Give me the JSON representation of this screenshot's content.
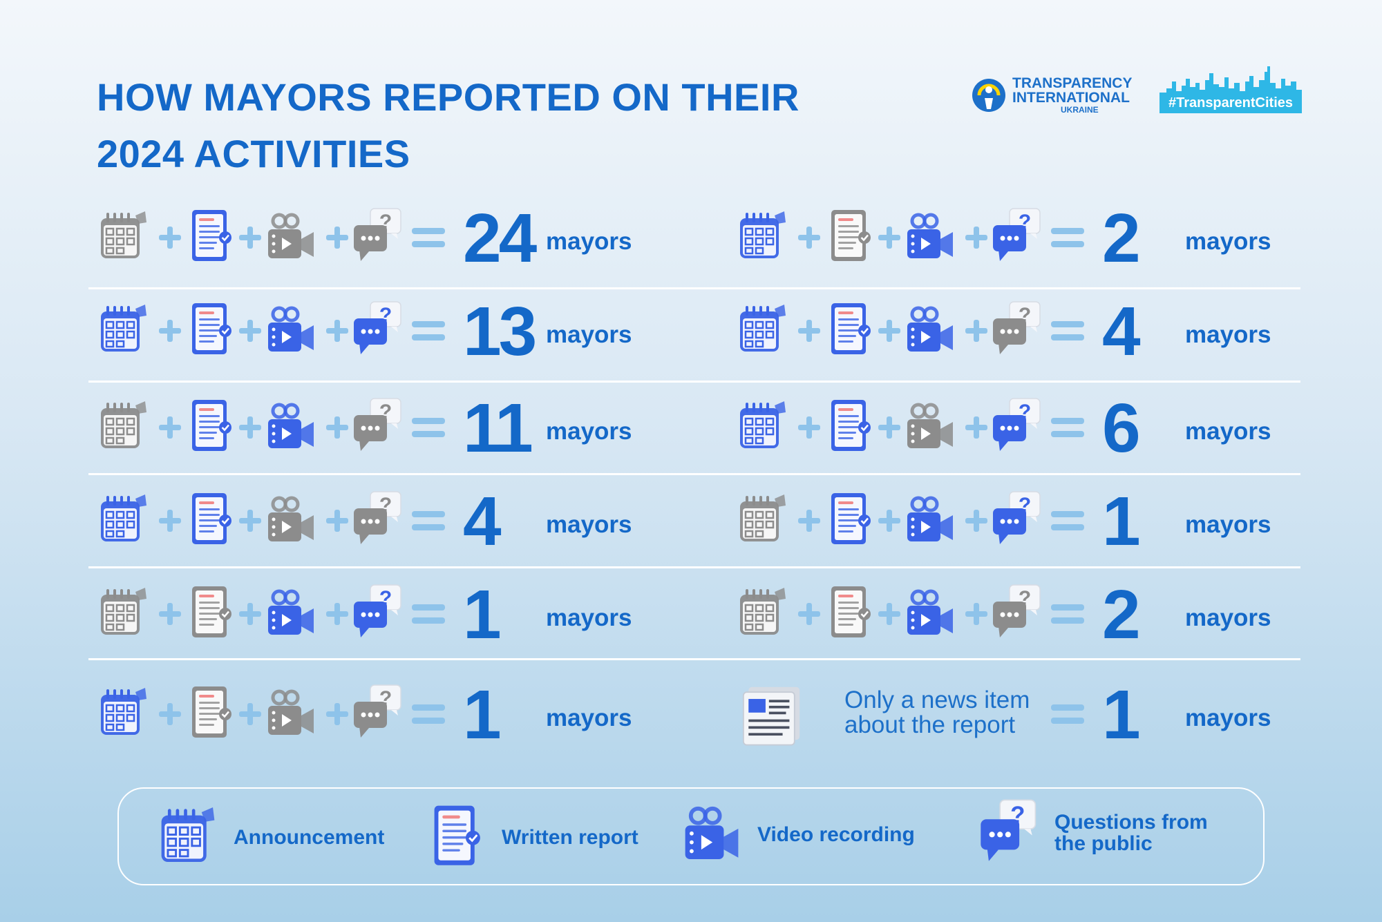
{
  "title_line1": "HOW MAYORS REPORTED ON THEIR",
  "title_line2": "2024 ACTIVITIES",
  "logos": {
    "ti_line1": "TRANSPARENCY",
    "ti_line2": "INTERNATIONAL",
    "ti_line3": "UKRAINE",
    "hashtag": "#TransparentCities"
  },
  "unit": "mayors",
  "colors": {
    "accent": "#1468c8",
    "active_icon": "#3a63e6",
    "inactive_icon": "#8c8c8c",
    "plus": "#8ec3ea"
  },
  "rows": [
    {
      "icons": [
        false,
        true,
        false,
        false
      ],
      "count": "24"
    },
    {
      "icons": [
        true,
        true,
        true,
        true
      ],
      "count": "13"
    },
    {
      "icons": [
        false,
        true,
        true,
        false
      ],
      "count": "11"
    },
    {
      "icons": [
        true,
        true,
        false,
        false
      ],
      "count": "4"
    },
    {
      "icons": [
        false,
        false,
        true,
        true
      ],
      "count": "1"
    },
    {
      "icons": [
        true,
        false,
        false,
        false
      ],
      "count": "1"
    },
    {
      "icons": [
        true,
        false,
        true,
        true
      ],
      "count": "2"
    },
    {
      "icons": [
        true,
        true,
        true,
        false
      ],
      "count": "4"
    },
    {
      "icons": [
        true,
        true,
        false,
        true
      ],
      "count": "6"
    },
    {
      "icons": [
        false,
        true,
        true,
        true
      ],
      "count": "1"
    },
    {
      "icons": [
        false,
        false,
        true,
        false
      ],
      "count": "2"
    }
  ],
  "news_row": {
    "text_line1": "Only a news item",
    "text_line2": "about the report",
    "count": "1"
  },
  "legend": {
    "announcement": "Announcement",
    "written_report": "Written report",
    "video_recording": "Video recording",
    "questions_line1": "Questions from",
    "questions_line2": "the public"
  }
}
